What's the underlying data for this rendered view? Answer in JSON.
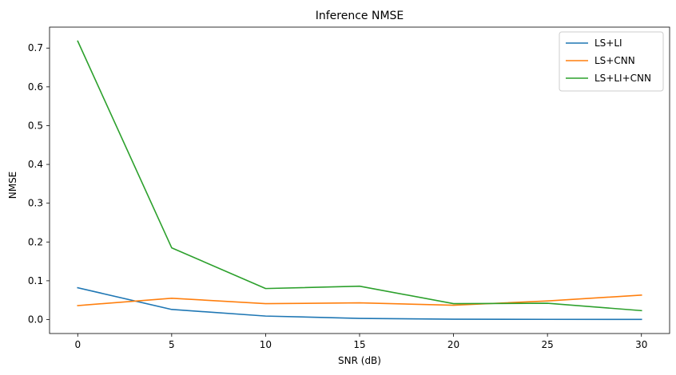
{
  "chart_data": {
    "type": "line",
    "title": "Inference NMSE",
    "xlabel": "SNR (dB)",
    "ylabel": "NMSE",
    "x": [
      0,
      5,
      10,
      15,
      20,
      25,
      30
    ],
    "xlim": [
      -1.5,
      31.5
    ],
    "ylim": [
      -0.036,
      0.754
    ],
    "xticks": [
      0,
      5,
      10,
      15,
      20,
      25,
      30
    ],
    "yticks": [
      0.0,
      0.1,
      0.2,
      0.3,
      0.4,
      0.5,
      0.6,
      0.7
    ],
    "ytick_labels": [
      "0.0",
      "0.1",
      "0.2",
      "0.3",
      "0.4",
      "0.5",
      "0.6",
      "0.7"
    ],
    "grid": false,
    "legend_position": "top-right",
    "series": [
      {
        "name": "LS+LI",
        "color": "#1f77b4",
        "values": [
          0.082,
          0.026,
          0.009,
          0.003,
          0.001,
          0.0005,
          0.0003
        ]
      },
      {
        "name": "LS+CNN",
        "color": "#ff7f0e",
        "values": [
          0.036,
          0.055,
          0.041,
          0.043,
          0.037,
          0.048,
          0.063
        ]
      },
      {
        "name": "LS+LI+CNN",
        "color": "#2ca02c",
        "values": [
          0.718,
          0.185,
          0.08,
          0.086,
          0.041,
          0.042,
          0.023
        ]
      }
    ]
  }
}
